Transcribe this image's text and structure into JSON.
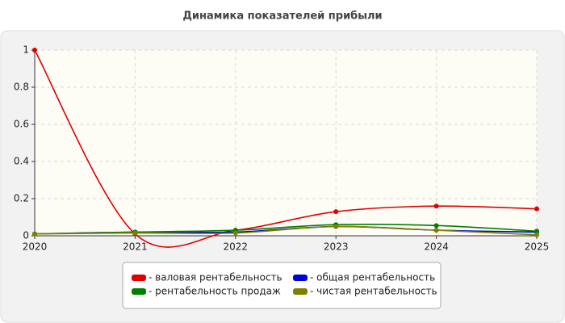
{
  "chart_data": {
    "type": "line",
    "title": "Динамика показателей прибыли",
    "x": [
      2020,
      2021,
      2022,
      2023,
      2024,
      2025
    ],
    "xlim": [
      2020,
      2025
    ],
    "xticks": [
      2020,
      2021,
      2022,
      2023,
      2024,
      2025
    ],
    "ylim": [
      0,
      1
    ],
    "yticks": [
      0,
      0.2,
      0.4,
      0.6,
      0.8,
      1
    ],
    "grid": true,
    "series": [
      {
        "name": "- валовая рентабельность",
        "color": "#e00000",
        "values": [
          1,
          0.01,
          0.03,
          0.13,
          0.16,
          0.145
        ]
      },
      {
        "name": "- общая рентабельность",
        "color": "#0000e0",
        "values": [
          0.01,
          0.02,
          0.02,
          0.05,
          0.03,
          0.02
        ]
      },
      {
        "name": "- рентабельность продаж",
        "color": "#008000",
        "values": [
          0.01,
          0.02,
          0.03,
          0.06,
          0.055,
          0.025
        ]
      },
      {
        "name": "- чистая рентабельность",
        "color": "#808000",
        "values": [
          0.01,
          0.015,
          0.015,
          0.05,
          0.03,
          0.005
        ]
      }
    ]
  }
}
